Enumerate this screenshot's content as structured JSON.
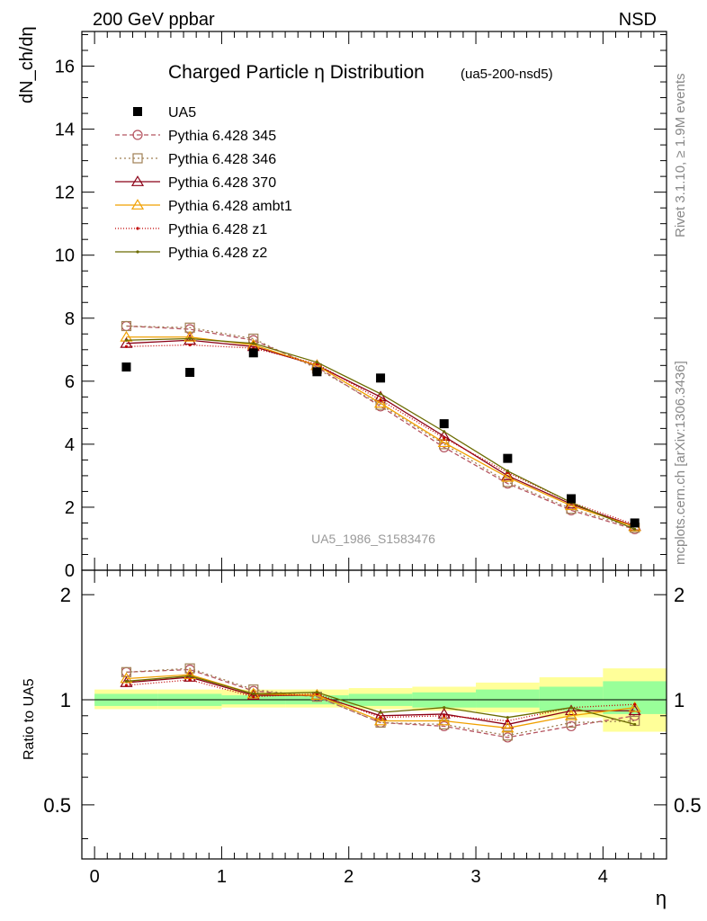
{
  "header": {
    "left": "200 GeV ppbar",
    "right": "NSD"
  },
  "side_labels": {
    "rivet": "Rivet 3.1.10, ≥ 1.9M events",
    "mcplots": "mcplots.cern.ch [arXiv:1306.3436]"
  },
  "chart_data": {
    "type": "scatter",
    "title": "Charged Particle η Distribution",
    "title_tag": "(ua5-200-nsd5)",
    "watermark": "UA5_1986_S1583476",
    "xlabel": "η",
    "ylabel_main": "dN_ch/dη",
    "ylabel_ratio": "Ratio to UA5",
    "xlim": [
      -0.1,
      4.5
    ],
    "ylim_main": [
      0,
      17.1
    ],
    "ylim_ratio": [
      0.35,
      2.35
    ],
    "ratio_log_scale": true,
    "x_ticks": [
      "0",
      "1",
      "2",
      "3",
      "4"
    ],
    "y_ticks_main": [
      "0",
      "2",
      "4",
      "6",
      "8",
      "10",
      "12",
      "14",
      "16"
    ],
    "y_ticks_ratio": [
      "0.5",
      "1",
      "2"
    ],
    "x": [
      0.25,
      0.75,
      1.25,
      1.75,
      2.25,
      2.75,
      3.25,
      3.75,
      4.25
    ],
    "data": {
      "name": "UA5",
      "values": [
        6.45,
        6.28,
        6.9,
        6.3,
        6.1,
        4.65,
        3.55,
        2.27,
        1.5
      ],
      "band_bin_edges": [
        0,
        0.5,
        1,
        1.5,
        2,
        2.5,
        3,
        3.5,
        4,
        4.5
      ],
      "band_inner": [
        [
          0.96,
          1.04
        ],
        [
          0.96,
          1.04
        ],
        [
          0.97,
          1.03
        ],
        [
          0.97,
          1.03
        ],
        [
          0.96,
          1.04
        ],
        [
          0.95,
          1.05
        ],
        [
          0.95,
          1.07
        ],
        [
          0.93,
          1.09
        ],
        [
          0.91,
          1.13
        ]
      ],
      "band_outer": [
        [
          0.94,
          1.07
        ],
        [
          0.94,
          1.07
        ],
        [
          0.95,
          1.07
        ],
        [
          0.95,
          1.07
        ],
        [
          0.94,
          1.08
        ],
        [
          0.93,
          1.09
        ],
        [
          0.92,
          1.12
        ],
        [
          0.89,
          1.16
        ],
        [
          0.81,
          1.23
        ]
      ]
    },
    "series": [
      {
        "name": "Pythia 6.428 345",
        "color": "#b5535f",
        "marker": "circle",
        "dash": "5,3",
        "values": [
          7.75,
          7.65,
          7.3,
          6.45,
          5.2,
          3.9,
          2.75,
          1.9,
          1.3
        ]
      },
      {
        "name": "Pythia 6.428 346",
        "color": "#a08055",
        "marker": "square",
        "dash": "2,3",
        "values": [
          7.75,
          7.7,
          7.35,
          6.4,
          5.25,
          4.0,
          2.8,
          1.95,
          1.35
        ]
      },
      {
        "name": "Pythia 6.428 370",
        "color": "#8b0016",
        "marker": "triangle",
        "dash": "",
        "values": [
          7.2,
          7.3,
          7.1,
          6.5,
          5.5,
          4.25,
          3.0,
          2.1,
          1.4
        ]
      },
      {
        "name": "Pythia 6.428 ambt1",
        "color": "#f0a000",
        "marker": "triangle",
        "dash": "",
        "values": [
          7.4,
          7.4,
          7.15,
          6.5,
          5.3,
          4.05,
          2.95,
          2.05,
          1.38
        ]
      },
      {
        "name": "Pythia 6.428 z1",
        "color": "#c00000",
        "marker": "dot",
        "dash": "1,2",
        "values": [
          7.1,
          7.15,
          7.05,
          6.55,
          5.4,
          4.2,
          3.1,
          2.15,
          1.45
        ]
      },
      {
        "name": "Pythia 6.428 z2",
        "color": "#6b6b00",
        "marker": "dot",
        "dash": "",
        "values": [
          7.3,
          7.35,
          7.2,
          6.6,
          5.6,
          4.4,
          3.15,
          2.15,
          1.3
        ]
      }
    ],
    "ratio_series": [
      [
        1.2,
        1.22,
        1.06,
        1.02,
        0.86,
        0.84,
        0.78,
        0.84,
        0.9
      ],
      [
        1.2,
        1.23,
        1.07,
        1.02,
        0.86,
        0.85,
        0.79,
        0.86,
        0.87
      ],
      [
        1.12,
        1.16,
        1.03,
        1.03,
        0.9,
        0.91,
        0.85,
        0.93,
        0.93
      ],
      [
        1.15,
        1.18,
        1.04,
        1.03,
        0.87,
        0.87,
        0.83,
        0.9,
        0.95
      ],
      [
        1.1,
        1.14,
        1.02,
        1.04,
        0.89,
        0.9,
        0.87,
        0.95,
        0.97
      ],
      [
        1.13,
        1.17,
        1.04,
        1.05,
        0.92,
        0.95,
        0.89,
        0.95,
        0.85
      ]
    ]
  }
}
